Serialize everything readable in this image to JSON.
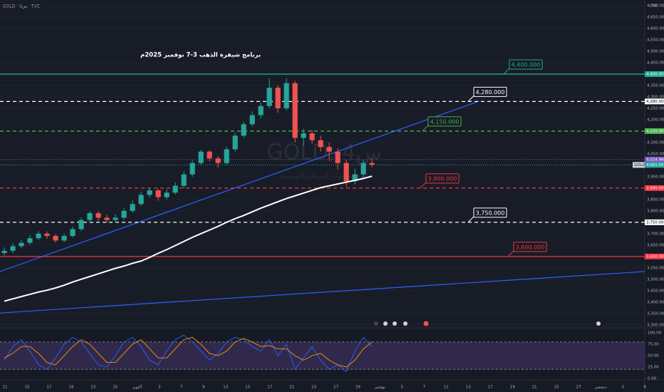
{
  "symbol": "GOLD · 4س · TVC",
  "currency": "USD",
  "time_axis": [
    "11",
    "15",
    "17",
    "19",
    "23",
    "25",
    "أكتوبر",
    "3",
    "7",
    "9",
    "13",
    "15",
    "17",
    "21",
    "23",
    "27",
    "29",
    "نوفمبر",
    "5",
    "7",
    "11",
    "13",
    "17",
    "19",
    "21",
    "25",
    "27",
    "ديسمبر",
    "3",
    "9"
  ],
  "chart_data": [
    {
      "type": "candlestick",
      "title": "برنامج شيفرة الذهب 3-7 نوفمبر 2025م",
      "watermark": "GOLD, 4س",
      "watermark_subtitle": "الذهب (دولار أمريكي/الأونصة)",
      "up_color": "#26a69a",
      "down_color": "#ef5350",
      "xlim": [
        -0.5,
        74.9
      ],
      "ylim": [
        3290,
        4725
      ],
      "yticks": [
        {
          "value": 3300,
          "label": "3,300.000"
        },
        {
          "value": 3350,
          "label": "3,350.000"
        },
        {
          "value": 3400,
          "label": "3,400.000"
        },
        {
          "value": 3450,
          "label": "3,450.000"
        },
        {
          "value": 3500,
          "label": "3,500.000"
        },
        {
          "value": 3550,
          "label": "3,550.000"
        },
        {
          "value": 3650,
          "label": "3,650.000"
        },
        {
          "value": 3700,
          "label": "3,700.000"
        },
        {
          "value": 3800,
          "label": "3,800.000"
        },
        {
          "value": 3850,
          "label": "3,850.000"
        },
        {
          "value": 3950,
          "label": "3,950.000"
        },
        {
          "value": 4050,
          "label": "4,050.000"
        },
        {
          "value": 4100,
          "label": "4,100.000"
        },
        {
          "value": 4200,
          "label": "4,200.000"
        },
        {
          "value": 4250,
          "label": "4,250.000"
        },
        {
          "value": 4300,
          "label": "4,300.000"
        },
        {
          "value": 4350,
          "label": "4,350.000"
        },
        {
          "value": 4450,
          "label": "4,450.000"
        },
        {
          "value": 4500,
          "label": "4,500.000"
        },
        {
          "value": 4550,
          "label": "4,550.000"
        },
        {
          "value": 4600,
          "label": "4,600.000"
        },
        {
          "value": 4650,
          "label": "4,650.000"
        },
        {
          "value": 4700,
          "label": "4,700.000"
        }
      ],
      "ohlc": [
        [
          3615,
          3640,
          3605,
          3625
        ],
        [
          3625,
          3658,
          3615,
          3645
        ],
        [
          3645,
          3672,
          3635,
          3660
        ],
        [
          3660,
          3695,
          3650,
          3680
        ],
        [
          3680,
          3712,
          3672,
          3700
        ],
        [
          3700,
          3710,
          3678,
          3690
        ],
        [
          3690,
          3698,
          3660,
          3670
        ],
        [
          3670,
          3700,
          3662,
          3690
        ],
        [
          3690,
          3730,
          3684,
          3720
        ],
        [
          3720,
          3770,
          3712,
          3760
        ],
        [
          3760,
          3800,
          3750,
          3790
        ],
        [
          3790,
          3798,
          3755,
          3770
        ],
        [
          3770,
          3782,
          3748,
          3760
        ],
        [
          3760,
          3785,
          3752,
          3770
        ],
        [
          3770,
          3812,
          3762,
          3800
        ],
        [
          3800,
          3845,
          3792,
          3830
        ],
        [
          3830,
          3885,
          3822,
          3870
        ],
        [
          3870,
          3902,
          3858,
          3890
        ],
        [
          3890,
          3898,
          3845,
          3860
        ],
        [
          3860,
          3895,
          3850,
          3880
        ],
        [
          3880,
          3925,
          3872,
          3910
        ],
        [
          3910,
          3972,
          3900,
          3960
        ],
        [
          3960,
          4022,
          3950,
          4010
        ],
        [
          4010,
          4068,
          4000,
          4060
        ],
        [
          4060,
          4066,
          4018,
          4030
        ],
        [
          4030,
          4040,
          3990,
          4010
        ],
        [
          4010,
          4082,
          4002,
          4070
        ],
        [
          4070,
          4142,
          4060,
          4130
        ],
        [
          4130,
          4192,
          4120,
          4180
        ],
        [
          4180,
          4236,
          4170,
          4220
        ],
        [
          4220,
          4275,
          4205,
          4260
        ],
        [
          4260,
          4381,
          4250,
          4340
        ],
        [
          4340,
          4352,
          4230,
          4250
        ],
        [
          4250,
          4381,
          4240,
          4360
        ],
        [
          4360,
          4370,
          4100,
          4120
        ],
        [
          4120,
          4160,
          4085,
          4140
        ],
        [
          4140,
          4155,
          4095,
          4110
        ],
        [
          4110,
          4130,
          4060,
          4080
        ],
        [
          4080,
          4100,
          4020,
          4060
        ],
        [
          4060,
          4075,
          3980,
          4010
        ],
        [
          4010,
          4025,
          3905,
          3930
        ],
        [
          3930,
          3985,
          3915,
          3960
        ],
        [
          3960,
          4025,
          3945,
          4010
        ],
        [
          4010,
          4030,
          3990,
          4002
        ]
      ],
      "moving_average": {
        "color": "#ffffff",
        "values": [
          3404,
          3414,
          3424,
          3434,
          3444,
          3452,
          3462,
          3474,
          3488,
          3500,
          3512,
          3524,
          3536,
          3548,
          3558,
          3570,
          3580,
          3596,
          3614,
          3630,
          3648,
          3666,
          3684,
          3700,
          3716,
          3732,
          3750,
          3766,
          3780,
          3796,
          3812,
          3826,
          3840,
          3854,
          3866,
          3878,
          3890,
          3902,
          3910,
          3918,
          3926,
          3934,
          3942,
          3952
        ]
      },
      "trendlines": [
        {
          "color": "#2962ff",
          "x": [
            -0.5,
            55.5
          ],
          "y": [
            3534,
            4281
          ]
        },
        {
          "color": "#2962ff",
          "x": [
            -0.5,
            74.9
          ],
          "y": [
            3352,
            3534
          ]
        }
      ],
      "levels": [
        {
          "value": 4400,
          "label": "4,400.000",
          "color": "#22ab94",
          "style": "solid"
        },
        {
          "value": 4280,
          "label": "4,280.000",
          "color": "#ffffff",
          "style": "dashed"
        },
        {
          "value": 4150,
          "label": "4,150.000",
          "color": "#4caf50",
          "style": "dashed"
        },
        {
          "value": 3900,
          "label": "3,900.000",
          "color": "#f23645",
          "style": "dashed"
        },
        {
          "value": 3750,
          "label": "3,750.000",
          "color": "#ffffff",
          "style": "dashed"
        },
        {
          "value": 3600,
          "label": "3,600.000",
          "color": "#f23645",
          "style": "solid"
        }
      ],
      "price_tags": [
        {
          "value": 4024.98,
          "label": "4,024.980",
          "color": "#7e57c2",
          "tag": null
        },
        {
          "value": 4001.555,
          "label": "4,001.555",
          "color": "#26a69a",
          "tag": "GOLD"
        }
      ]
    },
    {
      "type": "oscillator",
      "ylim": [
        0,
        100
      ],
      "yticks": [
        {
          "value": 100,
          "label": "100.00"
        },
        {
          "value": 75,
          "label": "75.00"
        },
        {
          "value": 50,
          "label": "50.00"
        },
        {
          "value": 25,
          "label": "25.00"
        },
        {
          "value": 0,
          "label": "0.00"
        }
      ],
      "band": [
        20,
        80
      ],
      "band_color": "#7e57c2",
      "series": [
        {
          "color": "#2962ff",
          "values": [
            40,
            70,
            85,
            60,
            30,
            20,
            45,
            75,
            90,
            80,
            55,
            30,
            25,
            50,
            80,
            90,
            70,
            40,
            30,
            60,
            85,
            95,
            80,
            60,
            40,
            55,
            80,
            90,
            85,
            70,
            60,
            85,
            50,
            75,
            20,
            45,
            70,
            40,
            20,
            30,
            15,
            60,
            90,
            70
          ]
        },
        {
          "color": "#ff9800",
          "values": [
            45,
            55,
            70,
            70,
            55,
            35,
            30,
            50,
            70,
            85,
            75,
            55,
            35,
            35,
            55,
            75,
            85,
            65,
            45,
            45,
            65,
            85,
            90,
            75,
            55,
            50,
            60,
            80,
            88,
            80,
            70,
            72,
            65,
            65,
            50,
            40,
            50,
            55,
            40,
            30,
            25,
            40,
            65,
            80
          ]
        }
      ]
    }
  ]
}
